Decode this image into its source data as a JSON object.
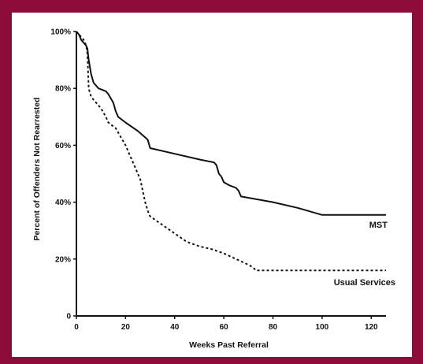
{
  "colors": {
    "frame": "#8b0b3a",
    "panel": "#ffffff",
    "ink": "#111111"
  },
  "chart_data": {
    "type": "line",
    "title": "",
    "xlabel": "Weeks Past Referral",
    "ylabel": "Percent of Offenders Not Rearrested",
    "xlim": [
      0,
      126
    ],
    "ylim": [
      0,
      100
    ],
    "x_ticks": [
      0,
      20,
      40,
      60,
      80,
      100,
      120
    ],
    "x_tick_labels": [
      "0",
      "20",
      "40",
      "60",
      "80",
      "100",
      "120"
    ],
    "y_ticks": [
      0,
      20,
      40,
      60,
      80,
      100
    ],
    "y_tick_labels": [
      "0",
      "20%",
      "40%",
      "60%",
      "80%",
      "100%"
    ],
    "grid": false,
    "legend": "inline labels at right",
    "series": [
      {
        "name": "MST",
        "style": "solid",
        "x": [
          0,
          1,
          2,
          4,
          4.5,
          5,
          6,
          7,
          9,
          12,
          13,
          15,
          16,
          17,
          20,
          25,
          29,
          30,
          40,
          50,
          56,
          57,
          58,
          59,
          60,
          62,
          65,
          66,
          67,
          80,
          90,
          100,
          110,
          126
        ],
        "y": [
          100,
          99,
          97,
          95,
          94,
          90,
          85,
          82,
          80,
          79,
          78,
          75,
          72,
          70,
          68,
          65,
          62,
          59,
          57,
          55,
          54,
          53,
          50,
          49,
          47,
          46,
          45,
          44,
          42,
          40,
          38,
          35.5,
          35.5,
          35.5
        ]
      },
      {
        "name": "Usual Services",
        "style": "dotted",
        "x": [
          0,
          1,
          3,
          4,
          4.5,
          5,
          6,
          8,
          10,
          12,
          13,
          16,
          18,
          20,
          22,
          24,
          26,
          27,
          28,
          29,
          30,
          35,
          40,
          45,
          50,
          55,
          60,
          65,
          70,
          72,
          73,
          80,
          100,
          126
        ],
        "y": [
          100,
          99,
          97,
          95,
          92,
          80,
          77,
          75,
          73,
          70,
          68,
          66,
          63,
          60,
          56,
          52,
          48,
          44,
          40,
          37,
          35,
          32,
          29,
          26,
          24.5,
          23.5,
          22,
          20,
          18,
          17,
          16,
          16,
          16,
          16
        ]
      }
    ],
    "annotations": [
      "MST",
      "Usual Services"
    ]
  }
}
